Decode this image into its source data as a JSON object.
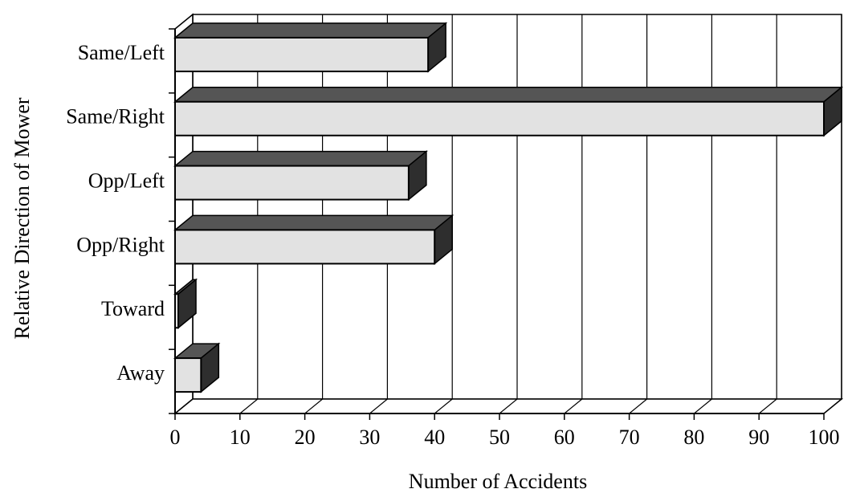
{
  "chart_data": {
    "type": "bar",
    "orientation": "horizontal",
    "xlabel": "Number of Accidents",
    "ylabel": "Relative Direction of Mower",
    "categories": [
      "Same/Left",
      "Same/Right",
      "Opp/Left",
      "Opp/Right",
      "Toward",
      "Away"
    ],
    "values": [
      39,
      100,
      36,
      40,
      0.5,
      4
    ],
    "color": "#e2e2e2",
    "top_color": "#555555",
    "side_color": "#2e2e2e",
    "xlim": [
      0,
      100
    ],
    "xticks": [
      0,
      10,
      20,
      30,
      40,
      50,
      60,
      70,
      80,
      90,
      100
    ],
    "grid": true
  }
}
